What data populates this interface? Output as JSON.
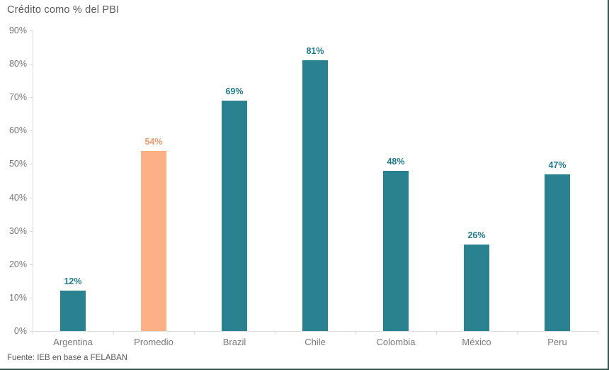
{
  "title": "Crédito como % del PBI",
  "source": "Fuente: IEB en base a FELABAN",
  "colors": {
    "bar_teal": "#2A8190",
    "bar_orange": "#FBB185",
    "value_label_teal": "#1F7A8E",
    "value_label_orange": "#F39A6E",
    "axis_line": "#DCDCDC",
    "axis_text": "#767676",
    "title_text": "#595959",
    "frame_edge": "#35584E"
  },
  "chart_data": {
    "type": "bar",
    "title": "Crédito como % del PBI",
    "categories": [
      "Argentina",
      "Promedio",
      "Brazil",
      "Chile",
      "Colombia",
      "México",
      "Peru"
    ],
    "values": [
      12,
      54,
      69,
      81,
      48,
      26,
      47
    ],
    "data_labels": [
      "12%",
      "54%",
      "69%",
      "81%",
      "48%",
      "26%",
      "47%"
    ],
    "highlight_category": "Promedio",
    "bar_colors": [
      "#2A8190",
      "#FBB185",
      "#2A8190",
      "#2A8190",
      "#2A8190",
      "#2A8190",
      "#2A8190"
    ],
    "value_label_colors": [
      "#1F7A8E",
      "#F39A6E",
      "#1F7A8E",
      "#1F7A8E",
      "#1F7A8E",
      "#1F7A8E",
      "#1F7A8E"
    ],
    "xlabel": "",
    "ylabel": "",
    "ylim": [
      0,
      90
    ],
    "y_tick_labels": [
      "0%",
      "10%",
      "20%",
      "30%",
      "40%",
      "50%",
      "60%",
      "70%",
      "80%",
      "90%"
    ],
    "y_tick_step": 10,
    "grid": false,
    "legend": "none",
    "source": "Fuente: IEB en base a FELABAN"
  }
}
